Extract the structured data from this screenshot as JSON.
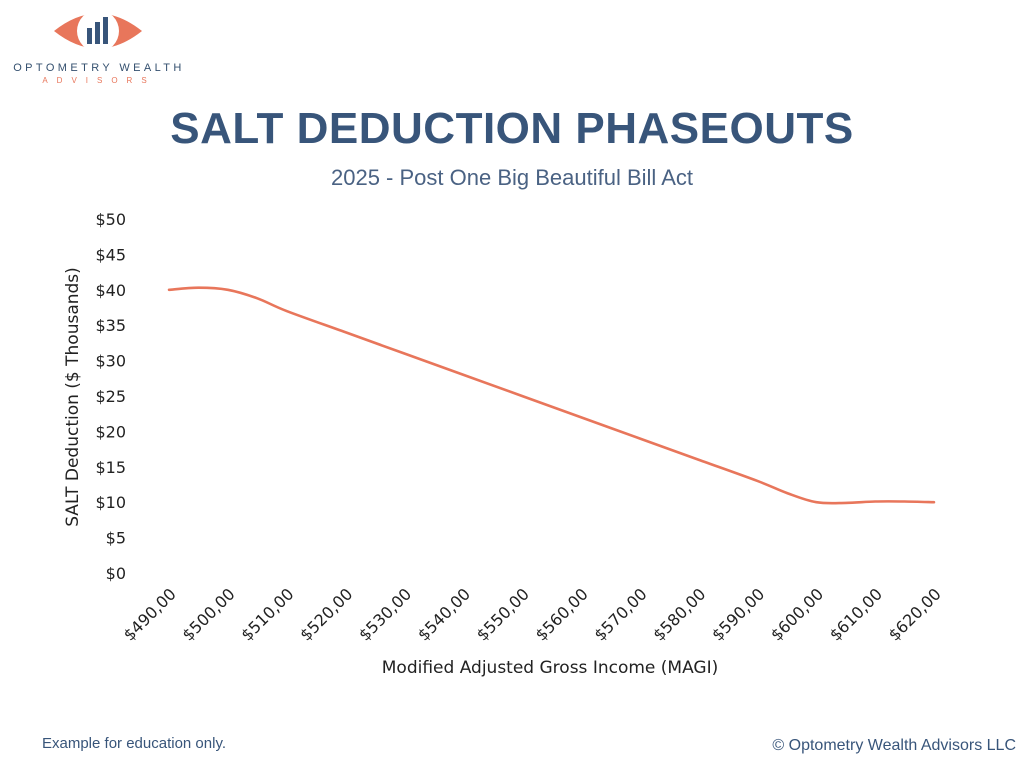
{
  "brand": {
    "name": "OPTOMETRY WEALTH",
    "sub": "ADVISORS",
    "accent": "#e8765b",
    "navy": "#38557a"
  },
  "header": {
    "title": "SALT DEDUCTION PHASEOUTS",
    "subtitle": "2025 - Post One Big Beautiful Bill Act"
  },
  "chart_data": {
    "type": "line",
    "xlabel": "Modified Adjusted Gross Income (MAGI)",
    "ylabel": "SALT Deduction ($ Thousands)",
    "ylim": [
      0,
      50
    ],
    "yticks": [
      "$0",
      "$5",
      "$10",
      "$15",
      "$20",
      "$25",
      "$30",
      "$35",
      "$40",
      "$45",
      "$50"
    ],
    "xlim": [
      490000,
      620000
    ],
    "xticks": [
      "$490,00",
      "$500,00",
      "$510,00",
      "$520,00",
      "$530,00",
      "$540,00",
      "$550,00",
      "$560,00",
      "$570,00",
      "$580,00",
      "$590,00",
      "$600,00",
      "$610,00",
      "$620,00"
    ],
    "grid": false,
    "line_color": "#e8765b",
    "series": [
      {
        "x": [
          490000,
          495000,
          500000,
          505000,
          510000,
          520000,
          530000,
          540000,
          550000,
          560000,
          570000,
          580000,
          590000,
          595000,
          600000,
          605000,
          610000,
          615000,
          620000
        ],
        "values": [
          40,
          40.3,
          40,
          38.8,
          37,
          34,
          31,
          28,
          25,
          22,
          19,
          16,
          13,
          11.3,
          10,
          9.9,
          10.1,
          10.1,
          10
        ]
      }
    ]
  },
  "footer": {
    "note": "Example for education only.",
    "copyright": "© Optometry Wealth Advisors LLC"
  }
}
